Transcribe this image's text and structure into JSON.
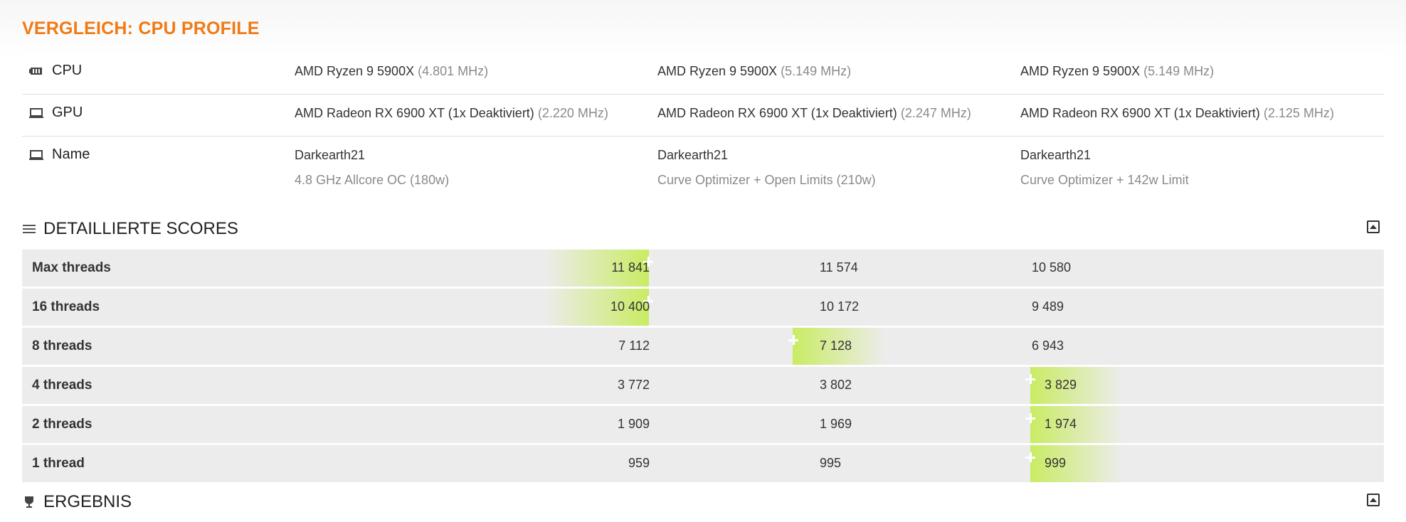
{
  "title": "VERGLEICH: CPU PROFILE",
  "specs": {
    "cpu": {
      "label": "CPU",
      "cols": [
        {
          "main": "AMD Ryzen 9 5900X",
          "detail": "(4.801 MHz)"
        },
        {
          "main": "AMD Ryzen 9 5900X",
          "detail": "(5.149 MHz)"
        },
        {
          "main": "AMD Ryzen 9 5900X",
          "detail": "(5.149 MHz)"
        }
      ]
    },
    "gpu": {
      "label": "GPU",
      "cols": [
        {
          "main": "AMD Radeon RX 6900 XT (1x Deaktiviert)",
          "detail": "(2.220 MHz)"
        },
        {
          "main": "AMD Radeon RX 6900 XT (1x Deaktiviert)",
          "detail": "(2.247 MHz)"
        },
        {
          "main": "AMD Radeon RX 6900 XT (1x Deaktiviert)",
          "detail": "(2.125 MHz)"
        }
      ]
    },
    "name": {
      "label": "Name",
      "cols": [
        {
          "main": "Darkearth21",
          "sub": "4.8 GHz Allcore OC (180w)"
        },
        {
          "main": "Darkearth21",
          "sub": "Curve Optimizer + Open Limits (210w)"
        },
        {
          "main": "Darkearth21",
          "sub": "Curve Optimizer + 142w Limit"
        }
      ]
    }
  },
  "scores_section": {
    "label": "DETAILLIERTE SCORES"
  },
  "scores": [
    {
      "name": "Max threads",
      "values": [
        "11 841",
        "11 574",
        "10 580"
      ],
      "best": 0
    },
    {
      "name": "16 threads",
      "values": [
        "10 400",
        "10 172",
        "9 489"
      ],
      "best": 0
    },
    {
      "name": "8 threads",
      "values": [
        "7 112",
        "7 128",
        "6 943"
      ],
      "best": 1
    },
    {
      "name": "4 threads",
      "values": [
        "3 772",
        "3 802",
        "3 829"
      ],
      "best": 2
    },
    {
      "name": "2 threads",
      "values": [
        "1 909",
        "1 969",
        "1 974"
      ],
      "best": 2
    },
    {
      "name": "1 thread",
      "values": [
        "959",
        "995",
        "999"
      ],
      "best": 2
    }
  ],
  "result_section": {
    "label": "ERGEBNIS"
  },
  "colors": {
    "accent": "#f07a14",
    "highlight": "#c9ec63"
  }
}
